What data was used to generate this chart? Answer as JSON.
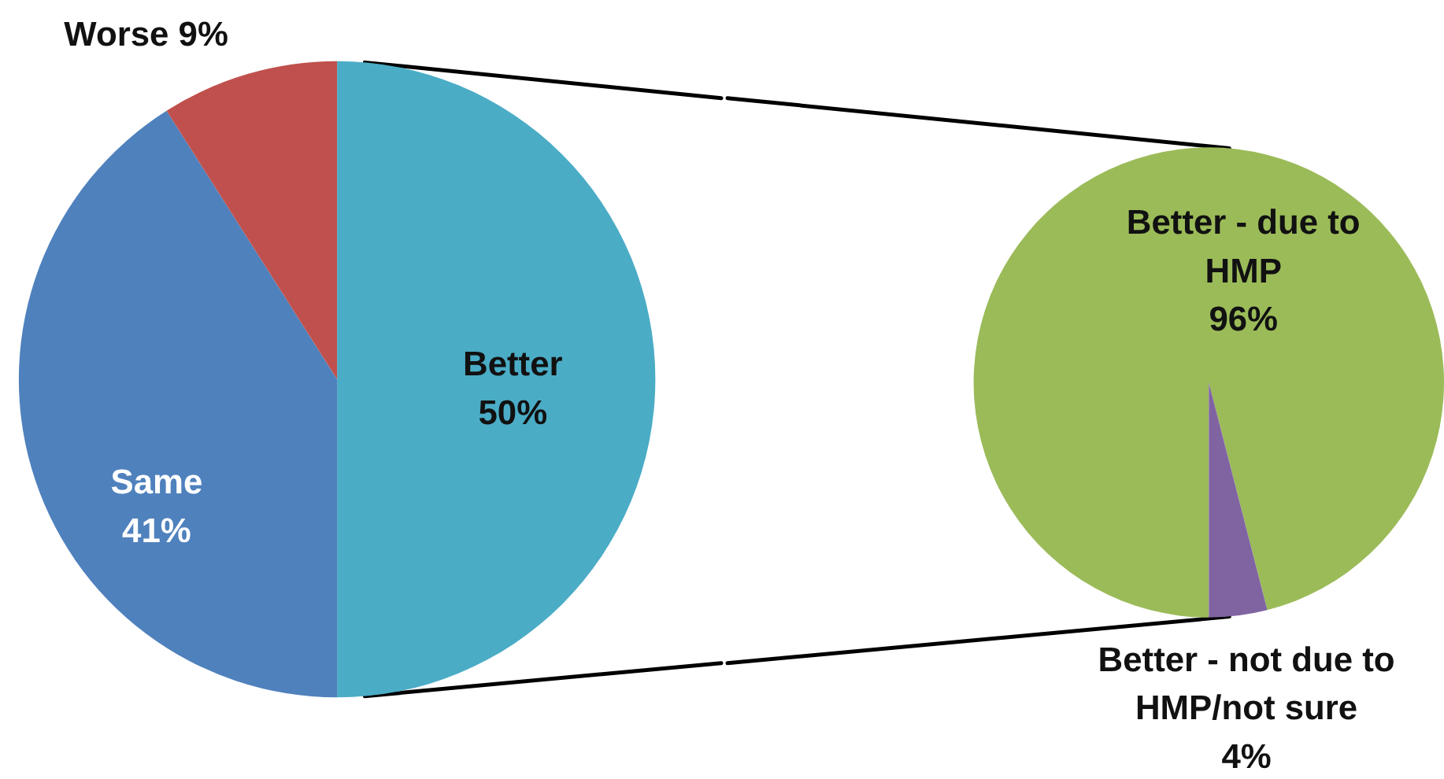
{
  "chart_data": [
    {
      "type": "pie",
      "categories": [
        "Better",
        "Same",
        "Worse"
      ],
      "values": [
        50,
        41,
        9
      ],
      "colors": [
        "#4bacc6",
        "#4f81bd",
        "#c0504d"
      ],
      "value_labels": [
        "50%",
        "41%",
        "9%"
      ],
      "legend": false
    },
    {
      "type": "pie",
      "categories": [
        "Better - due to HMP",
        "Better - not due to HMP/not sure"
      ],
      "values": [
        96,
        4
      ],
      "colors": [
        "#9bbb59",
        "#8064a2"
      ],
      "value_labels": [
        "96%",
        "4%"
      ],
      "legend": false
    }
  ]
}
